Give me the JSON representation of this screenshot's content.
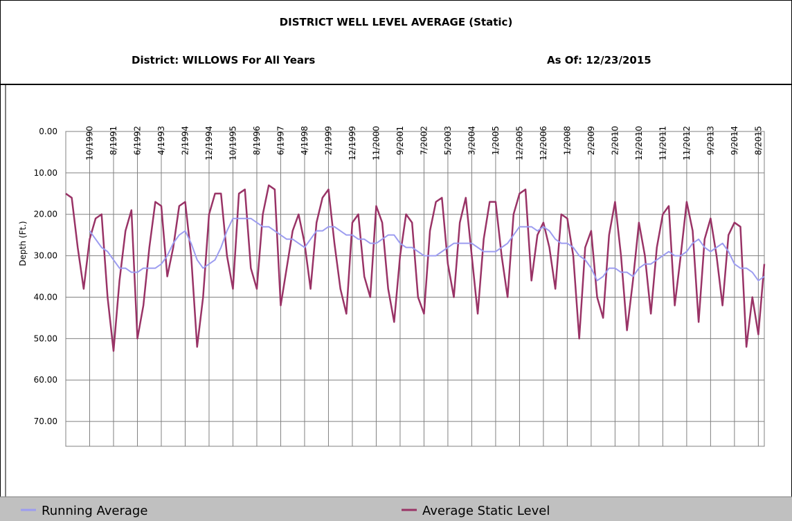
{
  "chart_data": {
    "type": "line",
    "title": "DISTRICT WELL LEVEL AVERAGE (Static)",
    "subtitle": "District: WILLOWS For All Years",
    "annotation": "As Of: 12/23/2015",
    "y_label": "Depth (Ft.)",
    "y_inverted": true,
    "grid": true,
    "legend": "bottom",
    "ylim": [
      0,
      76
    ],
    "yticks": [
      {
        "value": 0,
        "label": "0.00"
      },
      {
        "value": 10,
        "label": "10.00"
      },
      {
        "value": 20,
        "label": "20.00"
      },
      {
        "value": 30,
        "label": "30.00"
      },
      {
        "value": 40,
        "label": "40.00"
      },
      {
        "value": 50,
        "label": "50.00"
      },
      {
        "value": 60,
        "label": "60.00"
      },
      {
        "value": 70,
        "label": "70.00"
      }
    ],
    "categories": [
      null,
      null,
      null,
      null,
      "10/1990",
      null,
      null,
      null,
      "8/1991",
      null,
      null,
      null,
      "6/1992",
      null,
      null,
      null,
      "4/1993",
      null,
      null,
      null,
      "2/1994",
      null,
      null,
      null,
      "12/1994",
      null,
      null,
      null,
      "10/1995",
      null,
      null,
      null,
      "8/1996",
      null,
      null,
      null,
      "6/1997",
      null,
      null,
      null,
      "4/1998",
      null,
      null,
      null,
      "2/1999",
      null,
      null,
      null,
      "12/1999",
      null,
      null,
      null,
      "11/2000",
      null,
      null,
      null,
      "9/2001",
      null,
      null,
      null,
      "7/2002",
      null,
      null,
      null,
      "5/2003",
      null,
      null,
      null,
      "3/2004",
      null,
      null,
      null,
      "1/2005",
      null,
      null,
      null,
      "12/2005",
      null,
      null,
      null,
      "12/2006",
      null,
      null,
      null,
      "1/2008",
      null,
      null,
      null,
      "2/2009",
      null,
      null,
      null,
      "2/2010",
      null,
      null,
      null,
      "12/2010",
      null,
      null,
      null,
      "11/2011",
      null,
      null,
      null,
      "11/2012",
      null,
      null,
      null,
      "9/2013",
      null,
      null,
      null,
      "9/2014",
      null,
      null,
      null,
      "8/2015",
      null
    ],
    "series": [
      {
        "name": "Running Average",
        "color": "#9c9cf0",
        "values": [
          null,
          null,
          null,
          null,
          24,
          26,
          28,
          29,
          31,
          33,
          33,
          34,
          34,
          33,
          33,
          33,
          32,
          30,
          27,
          25,
          24,
          27,
          31,
          33,
          32,
          31,
          28,
          24,
          21,
          21,
          21,
          21,
          22,
          23,
          23,
          24,
          25,
          26,
          26,
          27,
          28,
          26,
          24,
          24,
          23,
          23,
          24,
          25,
          25,
          26,
          26,
          27,
          27,
          26,
          25,
          25,
          27,
          28,
          28,
          29,
          30,
          30,
          30,
          29,
          28,
          27,
          27,
          27,
          27,
          28,
          29,
          29,
          29,
          28,
          27,
          25,
          23,
          23,
          23,
          24,
          23,
          24,
          26,
          27,
          27,
          28,
          30,
          31,
          33,
          36,
          35,
          33,
          33,
          34,
          34,
          35,
          33,
          32,
          32,
          31,
          30,
          29,
          30,
          30,
          29,
          27,
          26,
          28,
          29,
          28,
          27,
          29,
          32,
          33,
          33,
          34,
          36,
          35
        ]
      },
      {
        "name": "Average Static Level",
        "color": "#993366",
        "values": [
          15,
          16,
          28,
          38,
          26,
          21,
          20,
          40,
          53,
          36,
          24,
          19,
          50,
          42,
          28,
          17,
          18,
          35,
          28,
          18,
          17,
          30,
          52,
          40,
          20,
          15,
          15,
          30,
          38,
          15,
          14,
          33,
          38,
          20,
          13,
          14,
          42,
          33,
          24,
          20,
          27,
          38,
          22,
          16,
          14,
          27,
          38,
          44,
          22,
          20,
          35,
          40,
          18,
          22,
          38,
          46,
          30,
          20,
          22,
          40,
          44,
          24,
          17,
          16,
          32,
          40,
          22,
          16,
          30,
          44,
          26,
          17,
          17,
          30,
          40,
          20,
          15,
          14,
          36,
          25,
          22,
          28,
          38,
          20,
          21,
          30,
          50,
          28,
          24,
          40,
          45,
          25,
          17,
          30,
          48,
          36,
          22,
          30,
          44,
          28,
          20,
          18,
          42,
          30,
          17,
          24,
          46,
          26,
          21,
          30,
          42,
          25,
          22,
          23,
          52,
          40,
          49,
          32
        ]
      }
    ]
  }
}
